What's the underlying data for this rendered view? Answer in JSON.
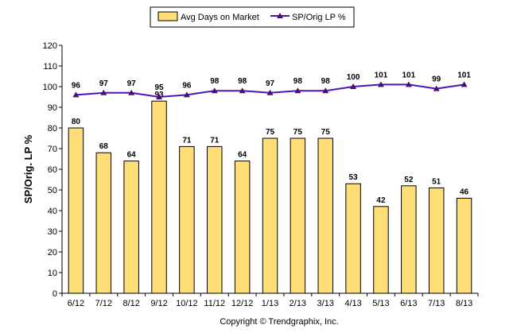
{
  "chart_data": {
    "type": "bar",
    "categories": [
      "6/12",
      "7/12",
      "8/12",
      "9/12",
      "10/12",
      "11/12",
      "12/12",
      "1/13",
      "2/13",
      "3/13",
      "4/13",
      "5/13",
      "6/13",
      "7/13",
      "8/13"
    ],
    "series": [
      {
        "name": "Avg Days on Market",
        "type": "bar",
        "values": [
          80,
          68,
          64,
          93,
          71,
          71,
          64,
          75,
          75,
          75,
          53,
          42,
          52,
          51,
          46
        ]
      },
      {
        "name": "SP/Orig LP %",
        "type": "line",
        "values": [
          96,
          97,
          97,
          95,
          96,
          98,
          98,
          97,
          98,
          98,
          100,
          101,
          101,
          99,
          101
        ]
      }
    ],
    "ylabel": "SP/Orig. LP %",
    "ylim": [
      0,
      120
    ],
    "yticks": [
      0,
      10,
      20,
      30,
      40,
      50,
      60,
      70,
      80,
      90,
      100,
      110,
      120
    ],
    "legend_position": "top-center",
    "grid": false,
    "colors": {
      "bar_fill": "#ffde78",
      "bar_stroke": "#000000",
      "line": "#4a16b8",
      "marker": "#4a0f6e"
    }
  },
  "footer": {
    "copyright": "Copyright © Trendgraphix, Inc."
  }
}
